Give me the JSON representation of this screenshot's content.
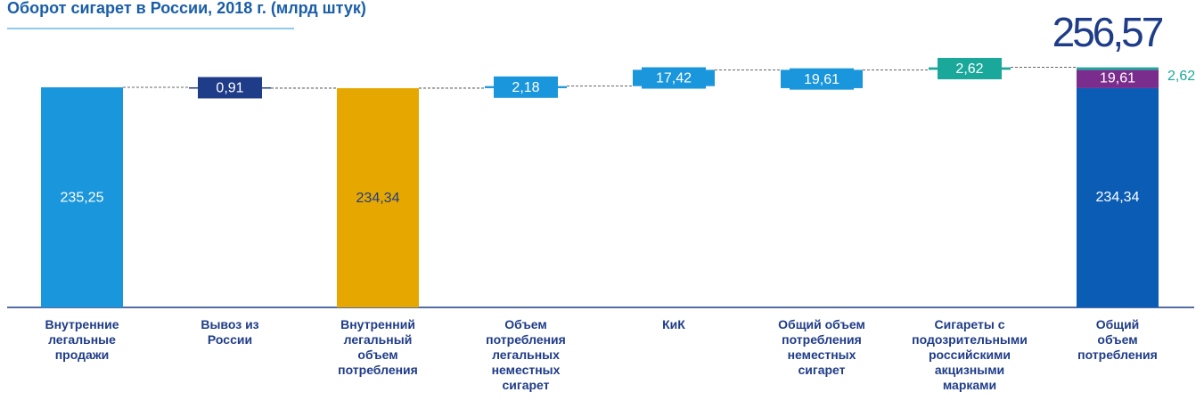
{
  "chart_data": {
    "type": "waterfall",
    "title": "Оборот сигарет в России, 2018 г. (млрд штук)",
    "steps": [
      {
        "category": "Внутренние\nлегальные\nпродажи",
        "kind": "total",
        "value": 235.25,
        "value_label": "235,25",
        "color": "#1a96dc",
        "label_color": "#ffffff"
      },
      {
        "category": "Вывоз из\nРоссии",
        "kind": "decrease",
        "value": 0.91,
        "value_label": "0,91",
        "color": "#1f3c88",
        "label_color": "#ffffff"
      },
      {
        "category": "Внутренний\nлегальный\nобъем\nпотребления",
        "kind": "total",
        "value": 234.34,
        "value_label": "234,34",
        "color": "#e6a800",
        "label_color": "#1f3c88"
      },
      {
        "category": "Объем\nпотребления\nлегальных\nнеместных\nсигарет",
        "kind": "increase",
        "value": 2.18,
        "value_label": "2,18",
        "color": "#1a96dc",
        "label_color": "#ffffff"
      },
      {
        "category": "КиК",
        "kind": "increase",
        "value": 17.42,
        "value_label": "17,42",
        "color": "#1a96dc",
        "label_color": "#ffffff"
      },
      {
        "category": "Общий объем\nпотребления\nнеместных\nсигарет",
        "kind": "subtotal",
        "value": 19.61,
        "value_label": "19,61",
        "color": "#1a96dc",
        "label_color": "#ffffff"
      },
      {
        "category": "Сигареты с\nподозрительными\nроссийскими\nакцизными\nмарками",
        "kind": "increase",
        "value": 2.62,
        "value_label": "2,62",
        "color": "#1aa89a",
        "label_color": "#ffffff"
      },
      {
        "category": "Общий\nобъем\nпотребления",
        "kind": "stack",
        "total": 256.57,
        "total_label": "256,57",
        "segments": [
          {
            "value": 234.34,
            "value_label": "234,34",
            "color": "#0b5cb5"
          },
          {
            "value": 19.61,
            "value_label": "19,61",
            "color": "#7b2d8e"
          },
          {
            "value": 2.62,
            "value_label": "2,62",
            "color": "#1aa89a"
          }
        ]
      }
    ]
  }
}
